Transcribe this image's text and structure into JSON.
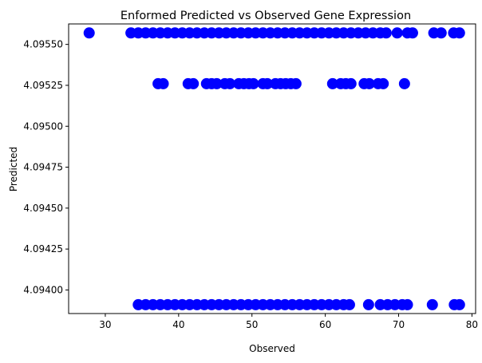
{
  "chart_data": {
    "type": "scatter",
    "title": "Enformed Predicted vs Observed Gene Expression",
    "xlabel": "Observed",
    "ylabel": "Predicted",
    "xlim": [
      25,
      80.5
    ],
    "ylim": [
      4.093856,
      4.095625
    ],
    "grid": false,
    "marker_color": "#0000ff",
    "x_ticks": [
      30,
      40,
      50,
      60,
      70,
      80
    ],
    "y_ticks": [
      4.094,
      4.09425,
      4.0945,
      4.09475,
      4.095,
      4.09525,
      4.0955
    ],
    "x_tick_labels": [
      "30",
      "40",
      "50",
      "60",
      "70",
      "80"
    ],
    "y_tick_labels": [
      "4.09400",
      "4.09425",
      "4.09450",
      "4.09475",
      "4.09500",
      "4.09525",
      "4.09550"
    ],
    "series": [
      {
        "values_x": [
          27.8,
          33.5,
          34.5,
          35.5,
          36.5,
          37.5,
          38.5,
          39.5,
          40.5,
          41.5,
          42.5,
          43.5,
          44.5,
          45.5,
          46.5,
          47.5,
          48.5,
          49.5,
          50.5,
          51.5,
          52.5,
          53.5,
          54.5,
          55.5,
          56.5,
          57.5,
          58.5,
          59.5,
          60.5,
          61.5,
          62.5,
          63.5,
          64.5,
          65.5,
          66.5,
          67.5,
          68.3,
          69.8,
          71.2,
          71.9,
          74.8,
          75.8,
          77.5,
          78.3
        ],
        "values_y": [
          4.09557,
          4.09557,
          4.09557,
          4.09557,
          4.09557,
          4.09557,
          4.09557,
          4.09557,
          4.09557,
          4.09557,
          4.09557,
          4.09557,
          4.09557,
          4.09557,
          4.09557,
          4.09557,
          4.09557,
          4.09557,
          4.09557,
          4.09557,
          4.09557,
          4.09557,
          4.09557,
          4.09557,
          4.09557,
          4.09557,
          4.09557,
          4.09557,
          4.09557,
          4.09557,
          4.09557,
          4.09557,
          4.09557,
          4.09557,
          4.09557,
          4.09557,
          4.09557,
          4.09557,
          4.09557,
          4.09557,
          4.09557,
          4.09557,
          4.09557,
          4.09557
        ]
      },
      {
        "values_x": [
          37.2,
          37.9,
          41.3,
          42.0,
          43.8,
          44.5,
          45.2,
          46.3,
          47.0,
          48.2,
          48.9,
          49.6,
          50.2,
          51.5,
          52.1,
          53.2,
          53.9,
          54.6,
          55.3,
          56.0,
          61.0,
          62.1,
          62.8,
          63.5,
          65.3,
          66.0,
          67.2,
          67.9,
          70.8
        ],
        "values_y": [
          4.09526,
          4.09526,
          4.09526,
          4.09526,
          4.09526,
          4.09526,
          4.09526,
          4.09526,
          4.09526,
          4.09526,
          4.09526,
          4.09526,
          4.09526,
          4.09526,
          4.09526,
          4.09526,
          4.09526,
          4.09526,
          4.09526,
          4.09526,
          4.09526,
          4.09526,
          4.09526,
          4.09526,
          4.09526,
          4.09526,
          4.09526,
          4.09526,
          4.09526
        ]
      },
      {
        "values_x": [
          34.5,
          35.5,
          36.5,
          37.5,
          38.5,
          39.5,
          40.5,
          41.5,
          42.5,
          43.5,
          44.5,
          45.5,
          46.5,
          47.5,
          48.5,
          49.5,
          50.5,
          51.5,
          52.5,
          53.5,
          54.5,
          55.5,
          56.5,
          57.5,
          58.5,
          59.5,
          60.5,
          61.5,
          62.5,
          63.3,
          65.9,
          67.5,
          68.5,
          69.5,
          70.5,
          71.2,
          74.6,
          77.6,
          78.3
        ],
        "values_y": [
          4.09391,
          4.09391,
          4.09391,
          4.09391,
          4.09391,
          4.09391,
          4.09391,
          4.09391,
          4.09391,
          4.09391,
          4.09391,
          4.09391,
          4.09391,
          4.09391,
          4.09391,
          4.09391,
          4.09391,
          4.09391,
          4.09391,
          4.09391,
          4.09391,
          4.09391,
          4.09391,
          4.09391,
          4.09391,
          4.09391,
          4.09391,
          4.09391,
          4.09391,
          4.09391,
          4.09391,
          4.09391,
          4.09391,
          4.09391,
          4.09391,
          4.09391,
          4.09391,
          4.09391,
          4.09391
        ]
      }
    ]
  }
}
